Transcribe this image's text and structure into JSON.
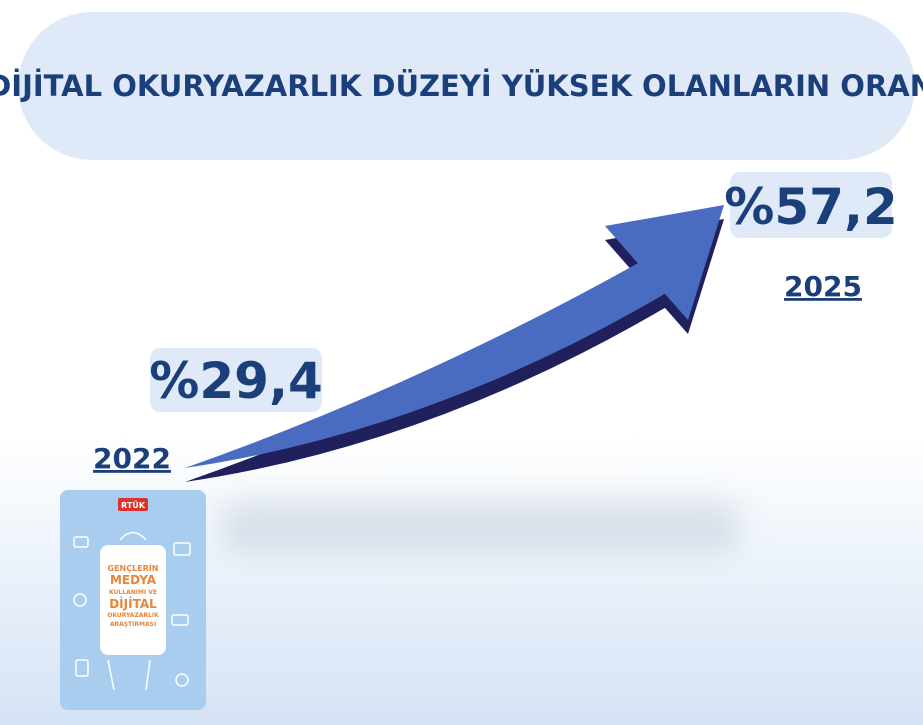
{
  "header": {
    "title": "DİJİTAL OKURYAZARLIK DÜZEYİ YÜKSEK OLANLARIN ORANI"
  },
  "start": {
    "value": "%29,4",
    "year": "2022"
  },
  "end": {
    "value": "%57,2",
    "year": "2025"
  },
  "book": {
    "publisher": "RTÜK",
    "lines": [
      "GENÇLERİN",
      "MEDYA",
      "KULLANIMI VE",
      "DİJİTAL",
      "OKURYAZARLIK",
      "ARAŞTIRMASI"
    ]
  }
}
